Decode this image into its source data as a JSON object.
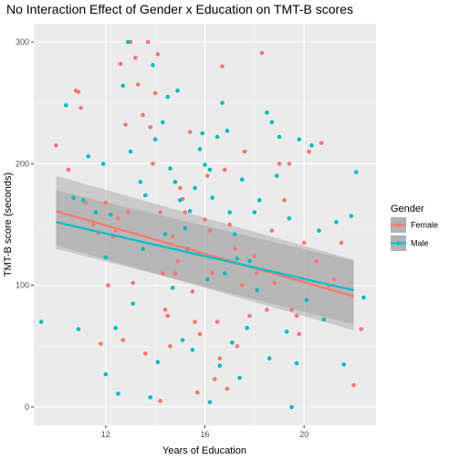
{
  "chart_data": {
    "type": "scatter",
    "title": "No Interaction Effect of Gender x Education on TMT-B scores",
    "xlabel": "Years of Education",
    "ylabel": "TMT-B score (seconds)",
    "xlim": [
      9.1,
      22.9
    ],
    "ylim": [
      -15,
      315
    ],
    "xticks": [
      12,
      16,
      20
    ],
    "yticks": [
      0,
      100,
      200,
      300
    ],
    "grid": true,
    "legend": {
      "title": "Gender",
      "position": "right"
    },
    "series": [
      {
        "name": "Female",
        "color": "#F8766D",
        "fit": {
          "x": [
            10,
            22
          ],
          "y": [
            161,
            91
          ],
          "ci_low": [
            133,
            63
          ],
          "ci_high": [
            190,
            121
          ]
        },
        "points": [
          [
            10.0,
            215
          ],
          [
            10.5,
            195
          ],
          [
            10.8,
            260
          ],
          [
            10.9,
            259
          ],
          [
            11.0,
            246
          ],
          [
            11.2,
            168
          ],
          [
            11.5,
            150
          ],
          [
            11.7,
            143
          ],
          [
            12.0,
            168
          ],
          [
            12.1,
            100
          ],
          [
            12.3,
            140
          ],
          [
            12.4,
            145
          ],
          [
            12.5,
            155
          ],
          [
            12.6,
            282
          ],
          [
            12.8,
            232
          ],
          [
            12.9,
            160
          ],
          [
            13.0,
            300
          ],
          [
            13.2,
            287
          ],
          [
            13.3,
            265
          ],
          [
            13.5,
            240
          ],
          [
            13.7,
            300
          ],
          [
            13.8,
            230
          ],
          [
            13.9,
            200
          ],
          [
            14.0,
            258
          ],
          [
            14.1,
            290
          ],
          [
            14.2,
            160
          ],
          [
            14.3,
            110
          ],
          [
            14.4,
            80
          ],
          [
            14.5,
            75
          ],
          [
            14.6,
            50
          ],
          [
            14.7,
            140
          ],
          [
            14.8,
            110
          ],
          [
            15.0,
            180
          ],
          [
            15.1,
            171
          ],
          [
            15.2,
            160
          ],
          [
            15.3,
            130
          ],
          [
            15.5,
            95
          ],
          [
            15.6,
            70
          ],
          [
            15.8,
            60
          ],
          [
            16.0,
            154
          ],
          [
            16.1,
            190
          ],
          [
            16.2,
            145
          ],
          [
            16.3,
            110
          ],
          [
            16.5,
            70
          ],
          [
            16.6,
            40
          ],
          [
            16.7,
            280
          ],
          [
            16.8,
            195
          ],
          [
            17.0,
            150
          ],
          [
            17.2,
            130
          ],
          [
            17.5,
            100
          ],
          [
            17.8,
            75
          ],
          [
            18.0,
            124
          ],
          [
            18.1,
            110
          ],
          [
            18.3,
            291
          ],
          [
            18.5,
            80
          ],
          [
            18.7,
            145
          ],
          [
            19.0,
            200
          ],
          [
            19.2,
            170
          ],
          [
            19.4,
            200
          ],
          [
            19.5,
            80
          ],
          [
            19.7,
            75
          ],
          [
            20.0,
            135
          ],
          [
            20.2,
            210
          ],
          [
            20.5,
            120
          ],
          [
            20.7,
            217
          ],
          [
            21.0,
            100
          ],
          [
            21.5,
            135
          ],
          [
            22.0,
            18
          ],
          [
            22.3,
            64
          ],
          [
            11.8,
            52
          ],
          [
            12.7,
            55
          ],
          [
            13.1,
            102
          ],
          [
            14.9,
            120
          ],
          [
            16.4,
            23
          ],
          [
            17.3,
            50
          ],
          [
            18.8,
            102
          ],
          [
            19.8,
            60
          ],
          [
            21.2,
            105
          ],
          [
            15.4,
            226
          ],
          [
            17.6,
            210
          ],
          [
            13.6,
            44
          ],
          [
            16.9,
            15
          ],
          [
            15.7,
            12
          ],
          [
            14.2,
            5
          ]
        ]
      },
      {
        "name": "Male",
        "color": "#00BFC4",
        "fit": {
          "x": [
            10,
            22
          ],
          "y": [
            152,
            96
          ],
          "ci_low": [
            130,
            68
          ],
          "ci_high": [
            178,
            120
          ]
        },
        "points": [
          [
            9.4,
            70
          ],
          [
            10.4,
            248
          ],
          [
            10.7,
            172
          ],
          [
            11.3,
            206
          ],
          [
            11.6,
            160
          ],
          [
            11.9,
            200
          ],
          [
            12.0,
            123
          ],
          [
            12.2,
            158
          ],
          [
            12.7,
            264
          ],
          [
            12.9,
            300
          ],
          [
            13.4,
            185
          ],
          [
            13.6,
            174
          ],
          [
            13.9,
            281
          ],
          [
            14.0,
            220
          ],
          [
            14.3,
            234
          ],
          [
            14.5,
            255
          ],
          [
            14.6,
            196
          ],
          [
            14.8,
            185
          ],
          [
            15.0,
            170
          ],
          [
            15.2,
            147
          ],
          [
            15.4,
            161
          ],
          [
            15.6,
            180
          ],
          [
            15.8,
            212
          ],
          [
            16.0,
            199
          ],
          [
            16.2,
            195
          ],
          [
            16.3,
            172
          ],
          [
            16.5,
            222
          ],
          [
            16.7,
            250
          ],
          [
            16.9,
            227
          ],
          [
            17.0,
            160
          ],
          [
            17.3,
            122
          ],
          [
            17.5,
            187
          ],
          [
            17.8,
            120
          ],
          [
            18.0,
            160
          ],
          [
            18.2,
            170
          ],
          [
            18.5,
            242
          ],
          [
            18.7,
            234
          ],
          [
            19.0,
            222
          ],
          [
            19.4,
            155
          ],
          [
            19.8,
            220
          ],
          [
            20.3,
            215
          ],
          [
            21.3,
            152
          ],
          [
            21.9,
            157
          ],
          [
            22.1,
            193
          ],
          [
            22.4,
            90
          ],
          [
            12.4,
            65
          ],
          [
            13.1,
            85
          ],
          [
            13.5,
            130
          ],
          [
            14.1,
            37
          ],
          [
            14.7,
            98
          ],
          [
            15.1,
            55
          ],
          [
            15.5,
            47
          ],
          [
            16.1,
            105
          ],
          [
            16.6,
            34
          ],
          [
            17.1,
            53
          ],
          [
            17.7,
            65
          ],
          [
            18.1,
            96
          ],
          [
            18.6,
            40
          ],
          [
            19.3,
            62
          ],
          [
            19.7,
            36
          ],
          [
            20.1,
            88
          ],
          [
            20.8,
            72
          ],
          [
            21.6,
            35
          ],
          [
            12.0,
            27
          ],
          [
            12.5,
            11
          ],
          [
            13.8,
            8
          ],
          [
            16.2,
            4
          ],
          [
            19.5,
            0
          ],
          [
            17.4,
            24
          ],
          [
            15.3,
            130
          ],
          [
            14.4,
            142
          ],
          [
            16.8,
            110
          ],
          [
            11.1,
            170
          ],
          [
            10.9,
            64
          ],
          [
            13.0,
            210
          ],
          [
            18.9,
            190
          ],
          [
            20.6,
            145
          ],
          [
            15.9,
            225
          ],
          [
            14.9,
            260
          ],
          [
            17.2,
            142
          ]
        ]
      }
    ]
  }
}
